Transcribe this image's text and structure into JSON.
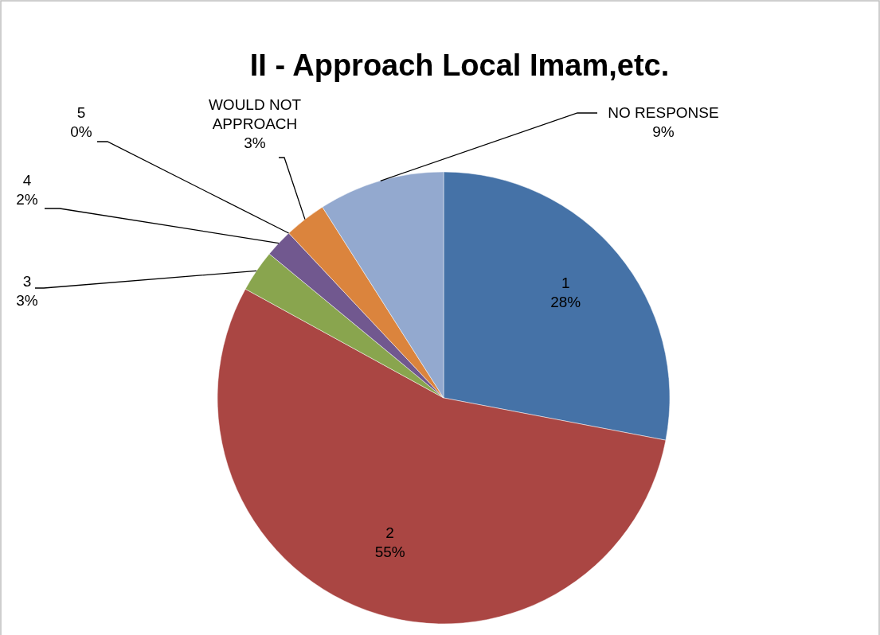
{
  "chart_data": {
    "type": "pie",
    "title": "II - Approach Local Imam,etc.",
    "categories": [
      "1",
      "2",
      "3",
      "4",
      "5",
      "WOULD NOT APPROACH",
      "NO RESPONSE"
    ],
    "values": [
      28,
      55,
      3,
      2,
      0,
      3,
      9
    ],
    "value_labels": [
      "28%",
      "55%",
      "3%",
      "2%",
      "0%",
      "3%",
      "9%"
    ],
    "colors": [
      "#4572a7",
      "#aa4643",
      "#89a54e",
      "#71588f",
      null,
      "#db843d",
      "#93a9cf"
    ],
    "legend": false
  }
}
